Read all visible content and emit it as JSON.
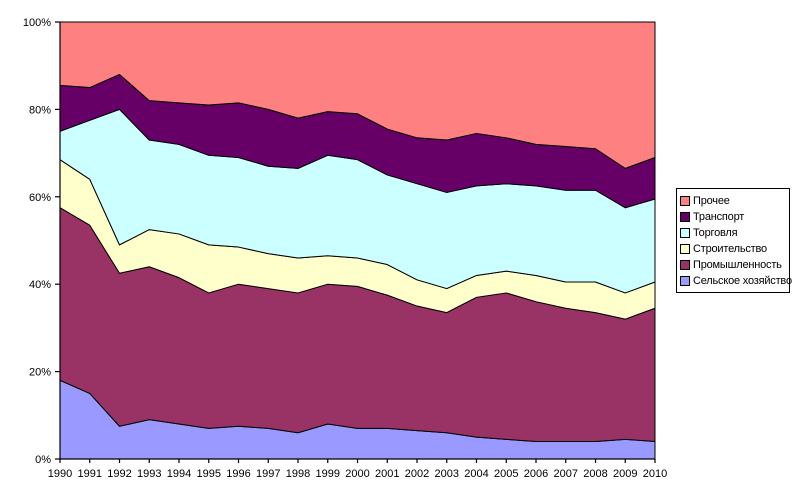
{
  "chart_data": {
    "type": "area",
    "stacking": "percent",
    "title": "",
    "xlabel": "",
    "ylabel": "",
    "grid": false,
    "legend_position": "right",
    "ylim": [
      0,
      100
    ],
    "y_ticks": [
      "0%",
      "20%",
      "40%",
      "60%",
      "80%",
      "100%"
    ],
    "y_tick_values": [
      0,
      20,
      40,
      60,
      80,
      100
    ],
    "x_categories": [
      "1990",
      "1991",
      "1992",
      "1993",
      "1994",
      "1995",
      "1996",
      "1997",
      "1998",
      "1999",
      "2000",
      "2001",
      "2002",
      "2003",
      "2004",
      "2005",
      "2006",
      "2007",
      "2008",
      "2009",
      "2010"
    ],
    "series_bottom_to_top": [
      {
        "name": "Сельское хозяйство",
        "color": "#9999FF",
        "values": [
          18,
          15,
          7.5,
          9,
          8,
          7,
          7.5,
          7,
          6,
          8,
          7,
          7,
          6.5,
          6,
          5,
          4.5,
          4,
          4,
          4,
          4.5,
          4
        ]
      },
      {
        "name": "Промышленность",
        "color": "#993366",
        "values": [
          39.5,
          38.5,
          35,
          35,
          33.5,
          31,
          32.5,
          32,
          32,
          32,
          32.5,
          30.5,
          28.5,
          27.5,
          32,
          33.5,
          32,
          30.5,
          29.5,
          27.5,
          30.5
        ]
      },
      {
        "name": "Строительство",
        "color": "#FFFFCC",
        "values": [
          11,
          10.5,
          6.5,
          8.5,
          10,
          11,
          8.5,
          8,
          8,
          6.5,
          6.5,
          7,
          6,
          5.5,
          5,
          5,
          6,
          6,
          7,
          6,
          6
        ]
      },
      {
        "name": "Торговля",
        "color": "#CCFFFF",
        "values": [
          6.5,
          13.5,
          31,
          20.5,
          20.5,
          20.5,
          20.5,
          20,
          20.5,
          23,
          22.5,
          20.5,
          22,
          22,
          20.5,
          20,
          20.5,
          21,
          21,
          19.5,
          19
        ]
      },
      {
        "name": "Транспорт",
        "color": "#660066",
        "values": [
          10.5,
          7.5,
          8,
          9,
          9.5,
          11.5,
          12.5,
          13,
          11.5,
          10,
          10.5,
          10.5,
          10.5,
          12,
          12,
          10.5,
          9.5,
          10,
          9.5,
          9,
          9.5
        ]
      },
      {
        "name": "Прочее",
        "color": "#FF8080",
        "values": [
          14.5,
          15,
          12,
          18,
          18.5,
          19,
          18.5,
          20,
          22,
          20.5,
          21,
          24.5,
          26.5,
          27,
          25.5,
          26.5,
          28,
          28.5,
          29,
          33.5,
          31
        ]
      }
    ],
    "legend_top_to_bottom": [
      {
        "label": "Прочее",
        "color": "#FF8080"
      },
      {
        "label": "Транспорт",
        "color": "#660066"
      },
      {
        "label": "Торговля",
        "color": "#CCFFFF"
      },
      {
        "label": "Строительство",
        "color": "#FFFFCC"
      },
      {
        "label": "Промышленность",
        "color": "#993366"
      },
      {
        "label": "Сельское хозяйство",
        "color": "#9999FF"
      }
    ],
    "axis_color": "#000000",
    "outline_color": "#000000"
  }
}
